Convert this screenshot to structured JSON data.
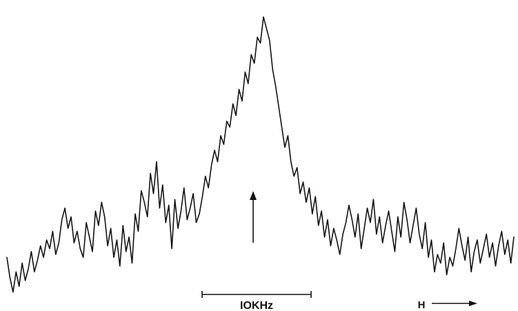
{
  "chart_data": {
    "type": "line",
    "title": "",
    "xlabel": "",
    "ylabel": "",
    "xlim": [
      0,
      100
    ],
    "ylim": [
      0,
      100
    ],
    "grid": false,
    "legend": "none",
    "series": [
      {
        "color": "#111111",
        "x": [
          0,
          0.6,
          1.2,
          1.8,
          2.4,
          3.0,
          3.6,
          4.2,
          4.8,
          5.4,
          6.0,
          6.6,
          7.2,
          7.8,
          8.4,
          9.0,
          9.6,
          10.2,
          10.8,
          11.4,
          12.0,
          12.6,
          13.2,
          13.8,
          14.4,
          15.0,
          15.6,
          16.2,
          16.8,
          17.4,
          18.0,
          18.6,
          19.2,
          19.8,
          20.4,
          21.0,
          21.6,
          22.2,
          22.8,
          23.4,
          24.0,
          24.6,
          25.2,
          25.8,
          26.4,
          27.0,
          27.6,
          28.2,
          28.8,
          29.4,
          30.0,
          30.6,
          31.2,
          31.8,
          32.4,
          33.0,
          33.6,
          34.2,
          34.8,
          35.4,
          36.0,
          36.6,
          37.2,
          37.8,
          38.4,
          39.0,
          39.6,
          40.2,
          40.8,
          41.4,
          42.0,
          42.6,
          43.2,
          43.8,
          44.4,
          45.0,
          45.6,
          46.2,
          46.8,
          47.4,
          48.0,
          48.6,
          49.2,
          49.8,
          50.4,
          51.0,
          51.6,
          52.2,
          52.8,
          53.4,
          54.0,
          54.6,
          55.2,
          55.8,
          56.4,
          57.0,
          57.6,
          58.2,
          58.8,
          59.4,
          60.0,
          60.6,
          61.2,
          61.8,
          62.4,
          63.0,
          63.6,
          64.2,
          64.8,
          65.4,
          66.0,
          66.6,
          67.2,
          67.8,
          68.4,
          69.0,
          69.6,
          70.2,
          70.8,
          71.4,
          72.0,
          72.6,
          73.2,
          73.8,
          74.4,
          75.0,
          75.6,
          76.2,
          76.8,
          77.4,
          78.0,
          78.6,
          79.2,
          79.8,
          80.4,
          81.0,
          81.6,
          82.2,
          82.8,
          83.4,
          84.0,
          84.6,
          85.2,
          85.8,
          86.4,
          87.0,
          87.6,
          88.2,
          88.8,
          89.4,
          90.0,
          90.6,
          91.2,
          91.8,
          92.4,
          93.0,
          93.6,
          94.2,
          94.8,
          95.4,
          96.0,
          96.6,
          97.2,
          97.8,
          98.4,
          99.0,
          99.6
        ],
        "values": [
          14,
          7,
          2,
          9,
          4,
          12,
          6,
          10,
          16,
          9,
          13,
          18,
          14,
          20,
          17,
          23,
          15,
          19,
          27,
          31,
          24,
          28,
          19,
          23,
          17,
          14,
          26,
          21,
          16,
          30,
          25,
          33,
          28,
          18,
          24,
          14,
          20,
          11,
          25,
          16,
          21,
          12,
          29,
          23,
          37,
          33,
          28,
          43,
          36,
          47,
          31,
          39,
          26,
          32,
          17,
          34,
          24,
          30,
          38,
          27,
          31,
          36,
          26,
          29,
          35,
          42,
          38,
          46,
          51,
          47,
          56,
          53,
          61,
          59,
          67,
          63,
          72,
          68,
          78,
          74,
          84,
          81,
          90,
          88,
          97,
          93,
          89,
          79,
          73,
          66,
          59,
          52,
          56,
          47,
          42,
          45,
          36,
          40,
          33,
          38,
          29,
          35,
          25,
          30,
          21,
          27,
          18,
          24,
          20,
          15,
          22,
          26,
          32,
          27,
          21,
          29,
          17,
          24,
          31,
          26,
          34,
          22,
          28,
          19,
          25,
          30,
          23,
          16,
          28,
          21,
          33,
          27,
          19,
          25,
          31,
          22,
          17,
          26,
          14,
          20,
          9,
          15,
          12,
          19,
          8,
          14,
          11,
          17,
          24,
          18,
          13,
          21,
          9,
          16,
          20,
          12,
          17,
          22,
          14,
          19,
          11,
          18,
          23,
          15,
          20,
          12,
          21
        ]
      }
    ],
    "annotations": {
      "scale_bar_label": "IOKHz",
      "field_label": "H"
    }
  }
}
